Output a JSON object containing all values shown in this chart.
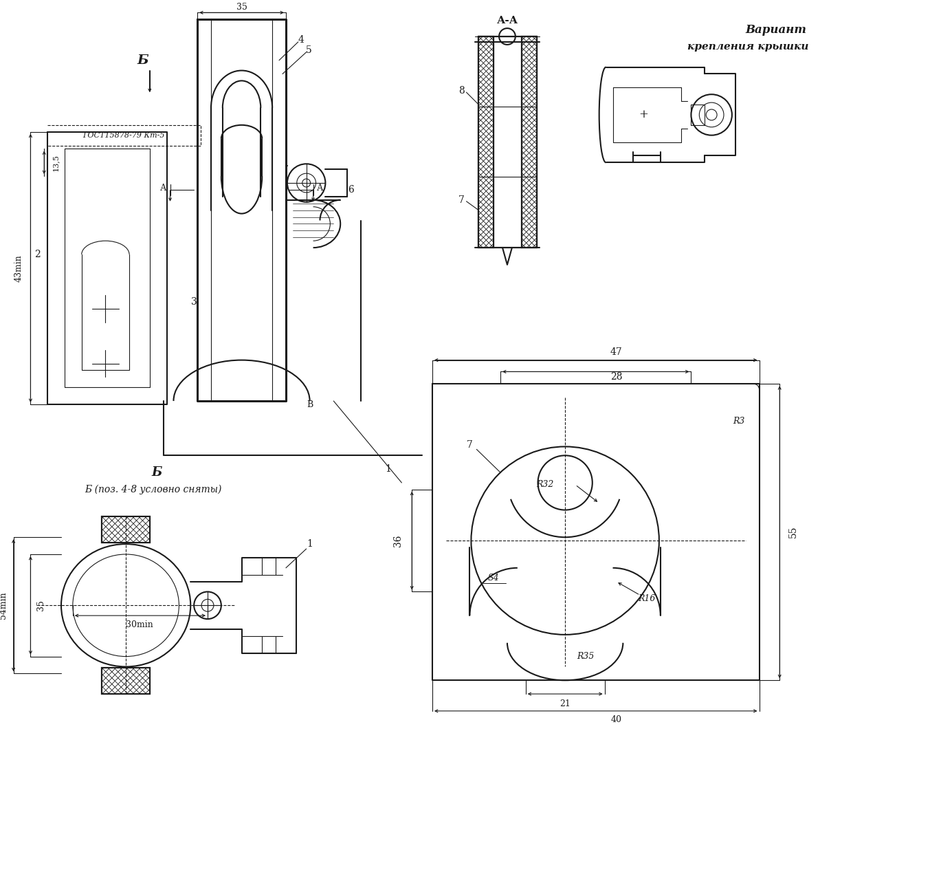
{
  "bg_color": "#ffffff",
  "line_color": "#1a1a1a",
  "figsize": [
    13.53,
    12.84
  ],
  "dpi": 100,
  "labels": {
    "B_arrow": "Б",
    "B_view": "Б",
    "B_subtitle": "Б (поз. 4-8 условно сняты)",
    "AA_label": "А-А",
    "variant_title": "Вариант",
    "variant_subtitle": "крепления крышки",
    "gost": "ГОСТ15878-79 Кт-5",
    "dim_35_top": "35",
    "dim_43min": "43min",
    "dim_13_5": "13,5",
    "dim_54min": "54min",
    "dim_35": "35",
    "dim_30min": "30min",
    "dim_47": "47",
    "dim_28": "28",
    "dim_R32": "R32",
    "dim_R3": "R3",
    "dim_36": "36",
    "dim_S4": "S4",
    "dim_R16": "R16",
    "dim_R35": "R35",
    "dim_21": "21",
    "dim_40": "40",
    "dim_55": "55",
    "pos1": "1",
    "pos2": "2",
    "pos3": "3",
    "pos4": "4",
    "pos5": "5",
    "pos6": "6",
    "pos7": "7",
    "pos8": "8",
    "label_A": "А",
    "label_B": "В"
  }
}
